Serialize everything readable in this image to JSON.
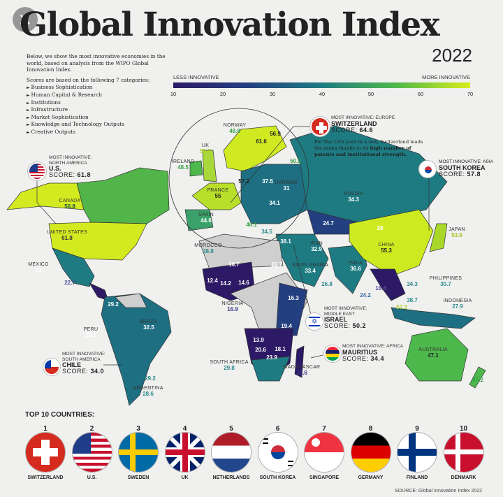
{
  "header": {
    "title": "Global Innovation Index",
    "year": "2022"
  },
  "intro": {
    "text": "Below, we show the most innovative economies in the world, based on analysis from the WIPO Global Innovation Index.",
    "categories_heading": "Scores are based on the following 7 categories:",
    "categories": [
      "Business Sophistication",
      "Human Capital & Research",
      "Institutions",
      "Infrastructure",
      "Market Sophistication",
      "Knowledge and Technology Outputs",
      "Creative Outputs"
    ]
  },
  "legend": {
    "low_label": "LESS INNOVATIVE",
    "high_label": "MORE INNOVATIVE",
    "ticks": [
      "10",
      "20",
      "30",
      "40",
      "50",
      "60",
      "70"
    ],
    "colors": [
      "#2d1a66",
      "#233f80",
      "#1e7b82",
      "#4fb84c",
      "#d8ee1a"
    ]
  },
  "map_labels": [
    {
      "name": "CANADA",
      "score": "50.8"
    },
    {
      "name": "UNITED STATES",
      "score": "61.8"
    },
    {
      "name": "MEXICO",
      "score": "31"
    },
    {
      "name": "",
      "score": "22.7"
    },
    {
      "name": "",
      "score": "29.2"
    },
    {
      "name": "PERU",
      "score": "29.1"
    },
    {
      "name": "BRAZIL",
      "score": "32.5"
    },
    {
      "name": "",
      "score": "29.2"
    },
    {
      "name": "ARGENTINA",
      "score": "28.6"
    },
    {
      "name": "NORWAY",
      "score": "48.8"
    },
    {
      "name": "",
      "score": "61.6"
    },
    {
      "name": "",
      "score": "56.9"
    },
    {
      "name": "UK",
      "score": "59.7"
    },
    {
      "name": "",
      "score": "50.2"
    },
    {
      "name": "IRELAND",
      "score": "48.5"
    },
    {
      "name": "",
      "score": "57.2"
    },
    {
      "name": "",
      "score": "37.5"
    },
    {
      "name": "UKRAINE",
      "score": "31"
    },
    {
      "name": "FRANCE",
      "score": "55"
    },
    {
      "name": "",
      "score": "34.1"
    },
    {
      "name": "SPAIN",
      "score": "44.6"
    },
    {
      "name": "",
      "score": "46.1"
    },
    {
      "name": "",
      "score": "34.5"
    },
    {
      "name": "",
      "score": "38.1"
    },
    {
      "name": "MOROCCO",
      "score": "28.8"
    },
    {
      "name": "",
      "score": "16.7"
    },
    {
      "name": "",
      "score": "12.4"
    },
    {
      "name": "",
      "score": "14.2"
    },
    {
      "name": "",
      "score": "14.6"
    },
    {
      "name": "",
      "score": "22.7"
    },
    {
      "name": "IRAN",
      "score": "32.9"
    },
    {
      "name": "SAUDI ARABIA",
      "score": "33.4"
    },
    {
      "name": "",
      "score": "26.8"
    },
    {
      "name": "INDIA",
      "score": "36.6"
    },
    {
      "name": "",
      "score": "24.2"
    },
    {
      "name": "",
      "score": "16.4"
    },
    {
      "name": "RUSSIA",
      "score": "34.3"
    },
    {
      "name": "",
      "score": "24.7"
    },
    {
      "name": "",
      "score": "28"
    },
    {
      "name": "CHINA",
      "score": "55.3"
    },
    {
      "name": "JAPAN",
      "score": "53.6"
    },
    {
      "name": "",
      "score": "34.3"
    },
    {
      "name": "PHILIPPINES",
      "score": "30.7"
    },
    {
      "name": "",
      "score": "38.7"
    },
    {
      "name": "",
      "score": "57.3"
    },
    {
      "name": "INDONESIA",
      "score": "27.9"
    },
    {
      "name": "AUSTRALIA",
      "score": "47.1"
    },
    {
      "name": "",
      "score": "47.2"
    },
    {
      "name": "",
      "score": "16.3"
    },
    {
      "name": "NIGERIA",
      "score": "16.9"
    },
    {
      "name": "",
      "score": "19.4"
    },
    {
      "name": "",
      "score": "13.9"
    },
    {
      "name": "",
      "score": "20.6"
    },
    {
      "name": "",
      "score": "18.1"
    },
    {
      "name": "",
      "score": "23.9"
    },
    {
      "name": "SOUTH AFRICA",
      "score": "29.8"
    },
    {
      "name": "MADAGASCAR",
      "score": "18.6"
    }
  ],
  "callouts": {
    "us": {
      "kicker": "MOST INNOVATIVE: NORTH AMERICA",
      "country": "U.S.",
      "score_label": "SCORE:",
      "score": "61.8"
    },
    "switzerland": {
      "kicker": "MOST INNOVATIVE: EUROPE",
      "country": "SWITZERLAND",
      "score_label": "SCORE:",
      "score": "64.6",
      "desc_pre": "For the 12th year in a row, Switzerland leads the ranks thanks to its ",
      "desc_bold": "high number of patents and institutional strength."
    },
    "south_korea": {
      "kicker": "MOST INNOVATIVE: ASIA",
      "country": "SOUTH KOREA",
      "score_label": "SCORE:",
      "score": "57.8"
    },
    "israel": {
      "kicker": "MOST INNOVATIVE: MIDDLE EAST",
      "country": "ISRAEL",
      "score_label": "SCORE:",
      "score": "50.2"
    },
    "mauritius": {
      "kicker": "MOST INNOVATIVE: AFRICA",
      "country": "MAURITIUS",
      "score_label": "SCORE:",
      "score": "34.4"
    },
    "chile": {
      "kicker": "MOST INNOVATIVE: SOUTH AMERICA",
      "country": "CHILE",
      "score_label": "SCORE:",
      "score": "34.0"
    }
  },
  "top10": {
    "heading": "TOP 10 COUNTRIES:",
    "items": [
      {
        "rank": "1",
        "name": "SWITZERLAND"
      },
      {
        "rank": "2",
        "name": "U.S."
      },
      {
        "rank": "3",
        "name": "SWEDEN"
      },
      {
        "rank": "4",
        "name": "UK"
      },
      {
        "rank": "5",
        "name": "NETHERLANDS"
      },
      {
        "rank": "6",
        "name": "SOUTH KOREA"
      },
      {
        "rank": "7",
        "name": "SINGAPORE"
      },
      {
        "rank": "8",
        "name": "GERMANY"
      },
      {
        "rank": "9",
        "name": "FINLAND"
      },
      {
        "rank": "10",
        "name": "DENMARK"
      }
    ]
  },
  "source": "SOURCE: Global Innovation Index 2022"
}
